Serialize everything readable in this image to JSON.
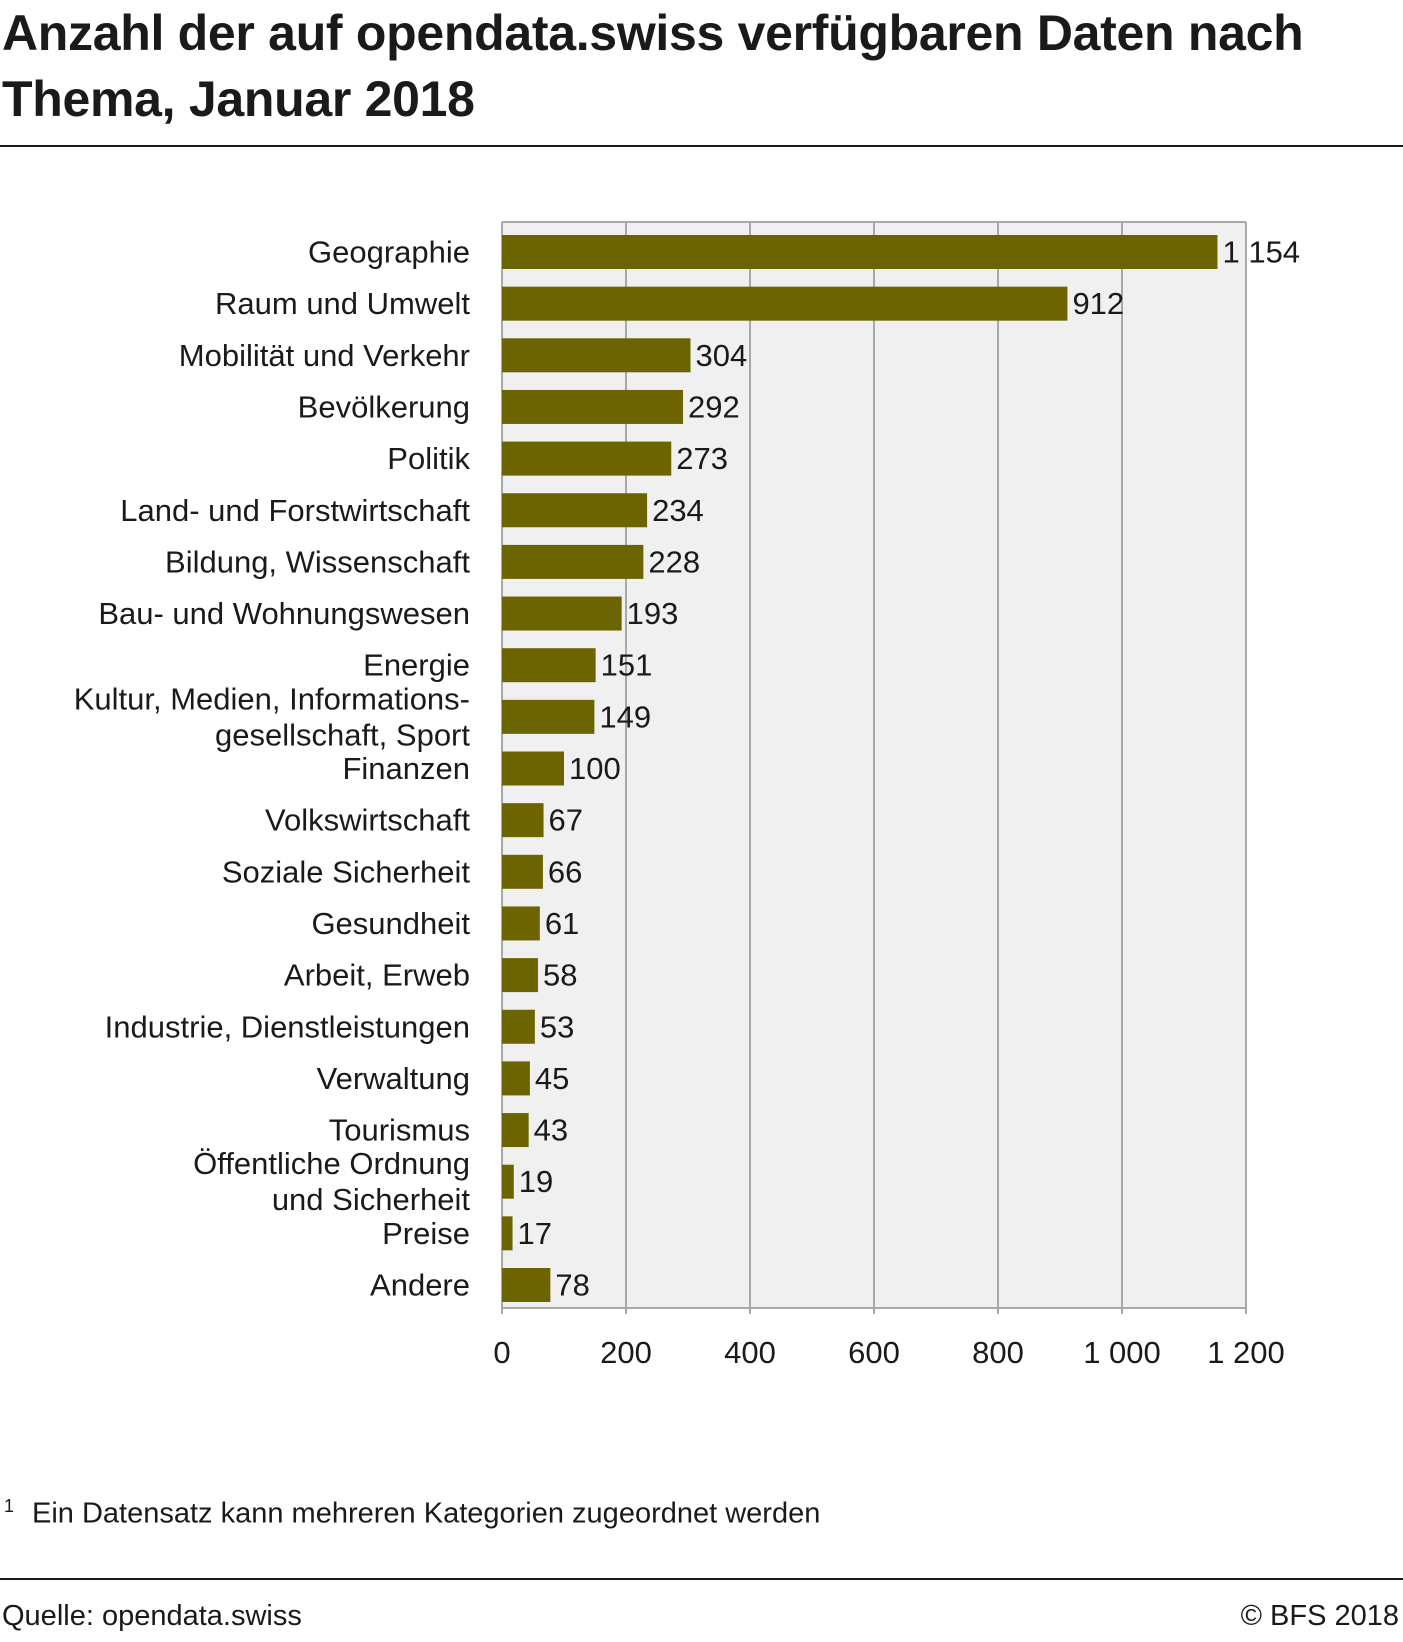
{
  "title": "Anzahl der auf opendata.swiss verfügbaren Daten nach Thema, Januar 2018",
  "footnote": {
    "marker": "1",
    "text": "Ein Datensatz kann mehreren Kategorien zugeordnet werden"
  },
  "source": "Quelle: opendata.swiss",
  "copyright": "© BFS 2018",
  "colors": {
    "bar": "#6b6400",
    "plot_background": "#f0f0f0",
    "grid": "#a8a8a8",
    "text": "#1a1a1a"
  },
  "chart_data": {
    "type": "bar",
    "orientation": "horizontal",
    "title": "Anzahl der auf opendata.swiss verfügbaren Daten nach Thema, Januar 2018",
    "xlabel": "",
    "ylabel": "",
    "xlim": [
      0,
      1200
    ],
    "x_ticks": [
      0,
      200,
      400,
      600,
      800,
      1000,
      1200
    ],
    "x_tick_labels": [
      "0",
      "200",
      "400",
      "600",
      "800",
      "1 000",
      "1 200"
    ],
    "grid": true,
    "legend": "none",
    "categories": [
      [
        "Geographie"
      ],
      [
        "Raum und Umwelt"
      ],
      [
        "Mobilität und Verkehr"
      ],
      [
        "Bevölkerung"
      ],
      [
        "Politik"
      ],
      [
        "Land- und Forstwirtschaft"
      ],
      [
        "Bildung, Wissenschaft"
      ],
      [
        "Bau- und Wohnungswesen"
      ],
      [
        "Energie"
      ],
      [
        "Kultur, Medien, Informations-",
        "gesellschaft, Sport"
      ],
      [
        "Finanzen"
      ],
      [
        "Volkswirtschaft"
      ],
      [
        "Soziale Sicherheit"
      ],
      [
        "Gesundheit"
      ],
      [
        "Arbeit, Erweb"
      ],
      [
        "Industrie, Dienstleistungen"
      ],
      [
        "Verwaltung"
      ],
      [
        "Tourismus"
      ],
      [
        "Öffentliche Ordnung",
        "und Sicherheit"
      ],
      [
        "Preise"
      ],
      [
        "Andere"
      ]
    ],
    "values": [
      1154,
      912,
      304,
      292,
      273,
      234,
      228,
      193,
      151,
      149,
      100,
      67,
      66,
      61,
      58,
      53,
      45,
      43,
      19,
      17,
      78
    ],
    "value_labels": [
      "1 154",
      "912",
      "304",
      "292",
      "273",
      "234",
      "228",
      "193",
      "151",
      "149",
      "100",
      "67",
      "66",
      "61",
      "58",
      "53",
      "45",
      "43",
      "19",
      "17",
      "78"
    ]
  }
}
